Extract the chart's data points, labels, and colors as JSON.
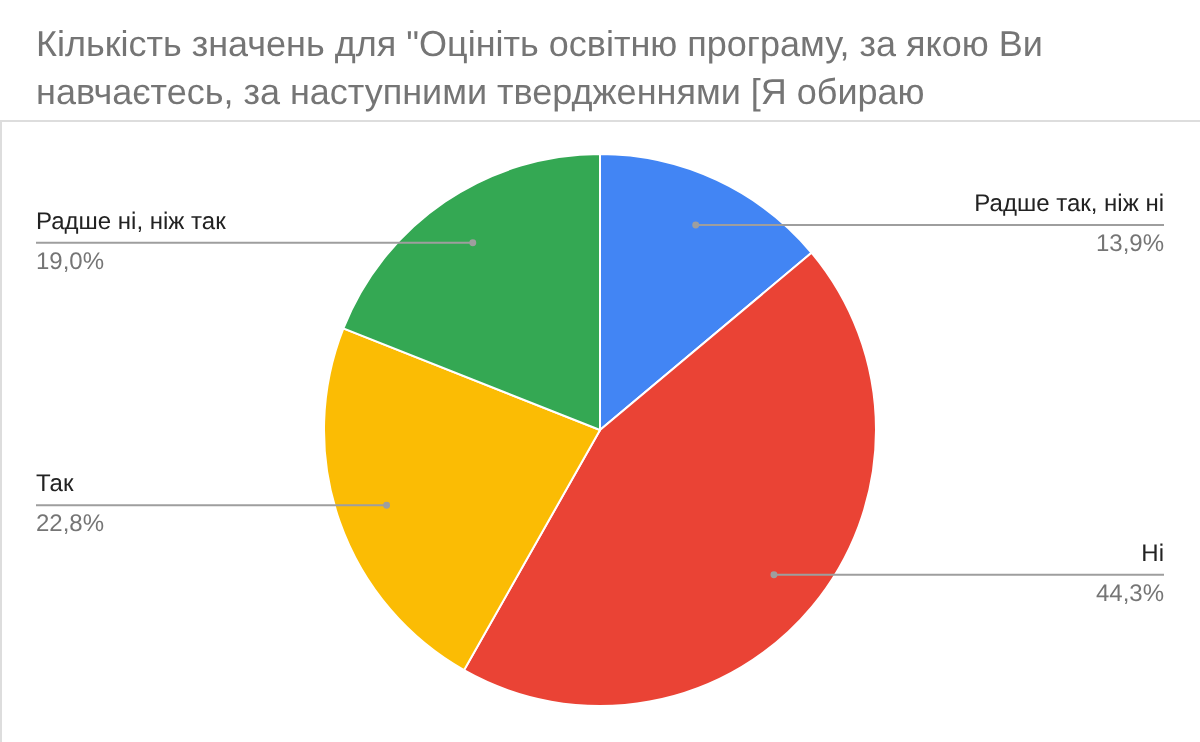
{
  "chart_data": {
    "type": "pie",
    "title": "Кількість значень для \"Оцініть освітню програму, за якою Ви навчаєтесь, за наступними твердженнями [Я обираю",
    "categories": [
      "Радше так, ніж ні",
      "Ні",
      "Так",
      "Радше ні, ніж так"
    ],
    "values": [
      13.9,
      44.3,
      22.8,
      19.0
    ],
    "colors": [
      "#4285f4",
      "#ea4335",
      "#fbbc04",
      "#34a853"
    ],
    "value_labels": [
      "13,9%",
      "44,3%",
      "22,8%",
      "19,0%"
    ]
  }
}
